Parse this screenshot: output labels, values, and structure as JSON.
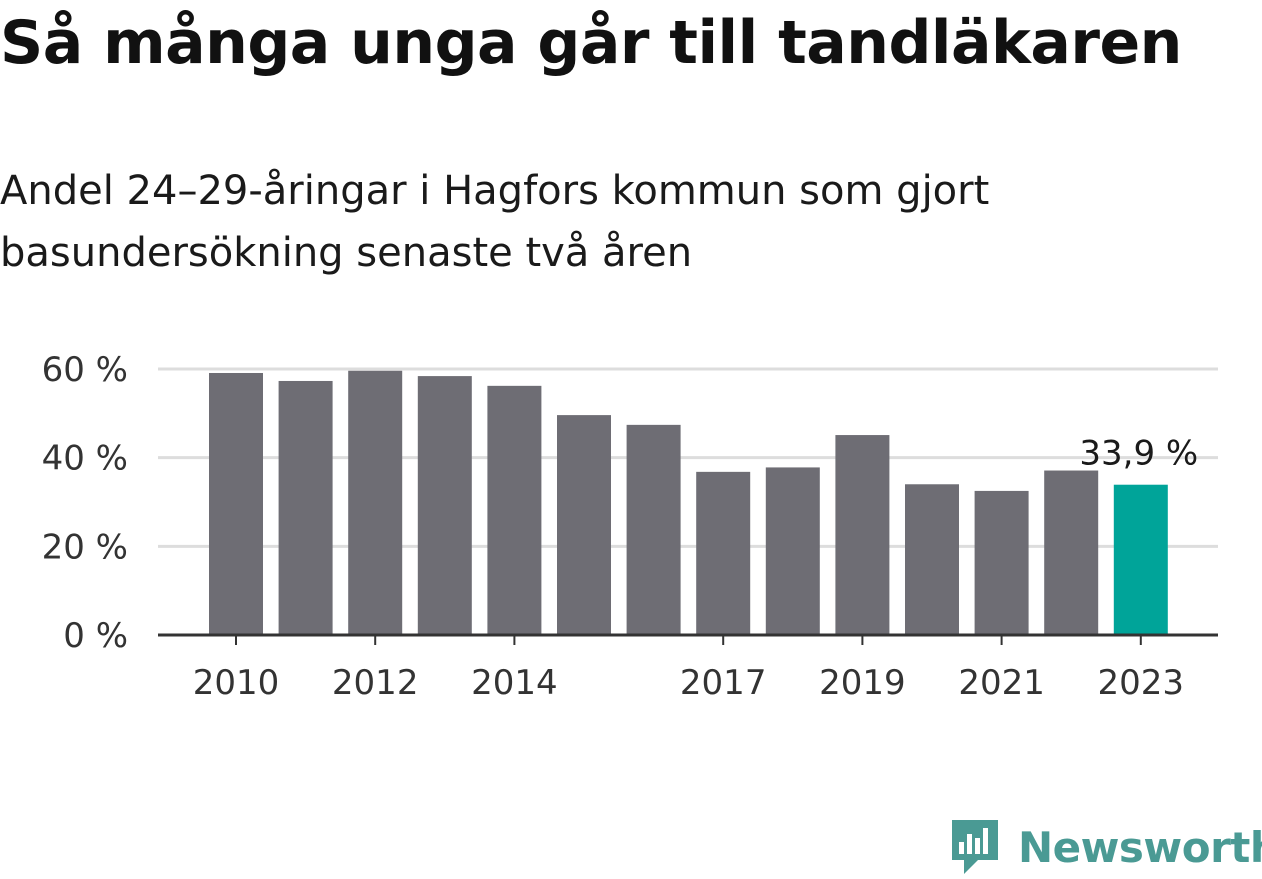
{
  "colors": {
    "bar": "#6e6d74",
    "highlight": "#00a499",
    "grid": "#dddddd",
    "axis": "#333333",
    "brand": "#4a9a94"
  },
  "chart_data": {
    "type": "bar",
    "title": "Så många unga går till tandläkaren",
    "subtitle": "Andel 24–29-åringar i Hagfors kommun som gjort basundersökning senaste två åren",
    "categories": [
      "2010",
      "2011",
      "2012",
      "2013",
      "2014",
      "2015",
      "2016",
      "2017",
      "2018",
      "2019",
      "2020",
      "2021",
      "2022",
      "2023"
    ],
    "values": [
      59.1,
      57.3,
      59.6,
      58.4,
      56.2,
      49.6,
      47.4,
      36.8,
      37.8,
      45.1,
      34.0,
      32.5,
      37.1,
      33.9
    ],
    "x_tick_labels": [
      "2010",
      "2012",
      "2014",
      "2017",
      "2019",
      "2021",
      "2023"
    ],
    "y_ticks": [
      0,
      20,
      40,
      60
    ],
    "y_tick_labels": [
      "0 %",
      "20 %",
      "40 %",
      "60 %"
    ],
    "ylim": [
      0,
      60
    ],
    "grid": true,
    "highlight": {
      "category": "2023",
      "label": "33,9 %"
    }
  },
  "brand": {
    "name": "Newsworthy",
    "icon": "bar-chart-speech-bubble-icon"
  }
}
